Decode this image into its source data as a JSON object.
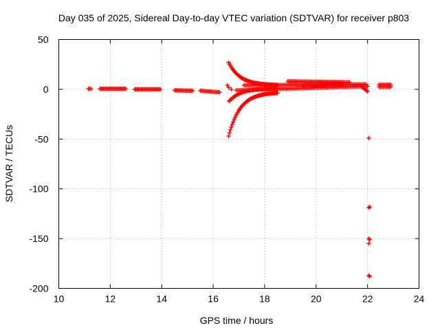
{
  "chart_data": {
    "type": "scatter",
    "title": "Day 035 of 2025, Sidereal Day-to-day VTEC variation (SDTVAR) for receiver p803",
    "xlabel": "GPS time / hours",
    "ylabel": "SDTVAR / TECUs",
    "xlim": [
      10,
      24
    ],
    "ylim": [
      -200,
      50
    ],
    "x_ticks": [
      "10",
      "12",
      "14",
      "16",
      "18",
      "20",
      "22",
      "24"
    ],
    "y_ticks": [
      "50",
      "0",
      "-50",
      "-100",
      "-150",
      "-200"
    ],
    "grid": true,
    "marker": "+",
    "series_color": "#ff0000",
    "segments": [
      {
        "x0": 11.15,
        "x1": 11.25,
        "y0": 0.5,
        "y1": 0.5,
        "n": 3
      },
      {
        "x0": 11.6,
        "x1": 12.6,
        "y0": 0.5,
        "y1": 0.5,
        "n": 24
      },
      {
        "x0": 12.95,
        "x1": 13.95,
        "y0": 0.0,
        "y1": 0.0,
        "n": 24
      },
      {
        "x0": 14.5,
        "x1": 15.2,
        "y0": -1.0,
        "y1": -1.5,
        "n": 16
      },
      {
        "x0": 15.5,
        "x1": 16.25,
        "y0": -1.5,
        "y1": -3.0,
        "n": 16
      },
      {
        "x0": 16.6,
        "x1": 18.5,
        "y0": 27,
        "y1": 4,
        "n": 55,
        "curve": "exp"
      },
      {
        "x0": 16.6,
        "x1": 18.5,
        "y0": -47,
        "y1": -3,
        "n": 55,
        "curve": "exp"
      },
      {
        "x0": 16.62,
        "x1": 18.5,
        "y0": -12,
        "y1": 1,
        "n": 45,
        "curve": "exp"
      },
      {
        "x0": 17.2,
        "x1": 21.95,
        "y0": 4,
        "y1": 5,
        "n": 90
      },
      {
        "x0": 16.9,
        "x1": 22.0,
        "y0": -1,
        "y1": 3,
        "n": 90
      },
      {
        "x0": 18.9,
        "x1": 21.3,
        "y0": 8,
        "y1": 7,
        "n": 50
      },
      {
        "x0": 19.5,
        "x1": 21.0,
        "y0": 3,
        "y1": 6,
        "n": 30
      },
      {
        "x0": 21.8,
        "x1": 22.0,
        "y0": 2,
        "y1": -2,
        "n": 6
      },
      {
        "x0": 22.45,
        "x1": 22.9,
        "y0": 4.5,
        "y1": 4.5,
        "n": 10
      },
      {
        "x0": 22.45,
        "x1": 22.9,
        "y0": 2.5,
        "y1": 2.5,
        "n": 10
      }
    ],
    "points": [
      {
        "x": 16.55,
        "y": 4
      },
      {
        "x": 16.6,
        "y": 2
      },
      {
        "x": 16.7,
        "y": 0
      },
      {
        "x": 22.05,
        "y": -49
      },
      {
        "x": 22.05,
        "y": -119
      },
      {
        "x": 22.08,
        "y": -118
      },
      {
        "x": 22.05,
        "y": -150
      },
      {
        "x": 22.08,
        "y": -151
      },
      {
        "x": 22.05,
        "y": -155
      },
      {
        "x": 22.05,
        "y": -187
      },
      {
        "x": 22.08,
        "y": -188
      }
    ]
  }
}
